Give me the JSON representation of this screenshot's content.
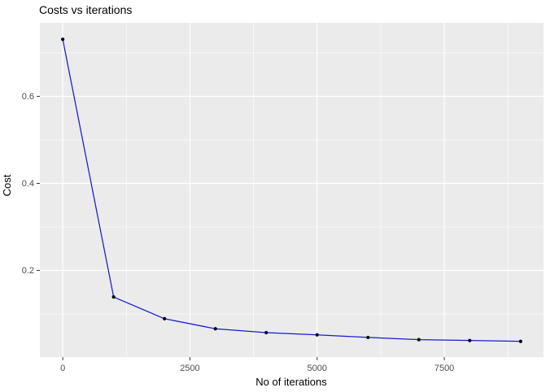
{
  "chart_data": {
    "type": "line",
    "title": "Costs vs iterations",
    "xlabel": "No of iterations",
    "ylabel": "Cost",
    "x": [
      0,
      1000,
      2000,
      3000,
      4000,
      5000,
      6000,
      7000,
      8000,
      9000
    ],
    "series": [
      {
        "name": "Cost",
        "values": [
          0.731,
          0.139,
          0.089,
          0.066,
          0.057,
          0.052,
          0.046,
          0.041,
          0.039,
          0.037
        ]
      }
    ],
    "x_major_ticks": [
      0,
      2500,
      5000,
      7500
    ],
    "x_tick_labels": [
      "0",
      "2500",
      "5000",
      "7500"
    ],
    "x_minor_ticks": [
      1250,
      3750,
      6250,
      8750
    ],
    "y_major_ticks": [
      0.2,
      0.4,
      0.6
    ],
    "y_tick_labels": [
      "0.2",
      "0.4",
      "0.6"
    ],
    "y_minor_ticks": [
      0.1,
      0.3,
      0.5,
      0.7
    ],
    "xlim": [
      -450,
      9450
    ],
    "ylim": [
      0.001,
      0.769
    ],
    "grid": "major and minor, white on gray panel",
    "legend": "none",
    "style": {
      "line_color": "#1A1ACD",
      "point_color": "#000000",
      "panel_bg": "#EBEBEB",
      "grid_color": "#FFFFFF",
      "tick_color": "#333333",
      "tick_label_color": "#4D4D4D",
      "title_color": "#000000",
      "axis_title_color": "#000000"
    }
  }
}
